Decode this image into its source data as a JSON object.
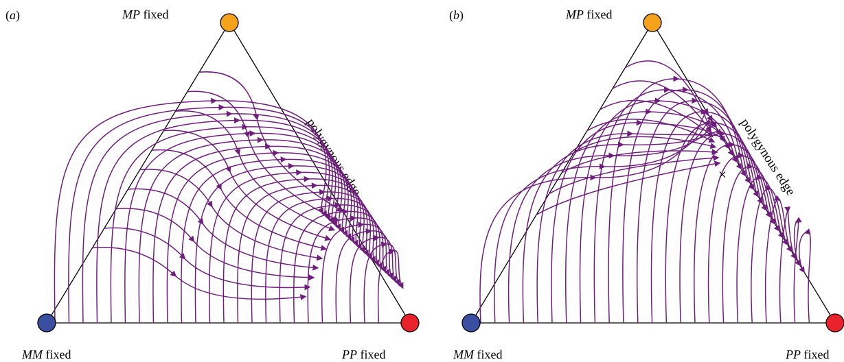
{
  "figure": {
    "panels": [
      {
        "id": "a",
        "panel_label_open": "(",
        "panel_label_letter": "a",
        "panel_label_close": ")",
        "top_label_italic": "MP",
        "top_label_rest": " fixed",
        "bottom_left_label_italic": "MM",
        "bottom_left_label_rest": " fixed",
        "bottom_right_label_italic": "PP",
        "bottom_right_label_rest": " fixed",
        "edge_label": "polygynous edge",
        "flow": "converges to PP fixed vertex",
        "has_interior_equilibrium_mark": false
      },
      {
        "id": "b",
        "panel_label_open": "(",
        "panel_label_letter": "b",
        "panel_label_close": ")",
        "top_label_italic": "MP",
        "top_label_rest": " fixed",
        "bottom_left_label_italic": "MM",
        "bottom_left_label_rest": " fixed",
        "bottom_right_label_italic": "PP",
        "bottom_right_label_rest": " fixed",
        "edge_label": "polygynous edge",
        "flow": "converges to equilibrium on polygynous edge",
        "has_interior_equilibrium_mark": true,
        "equilibrium_marker": "×"
      }
    ],
    "colors": {
      "MM": "#3a4fa0",
      "MP": "#f4a21c",
      "PP": "#e8232b",
      "streamline": "#6d1f7a"
    }
  }
}
